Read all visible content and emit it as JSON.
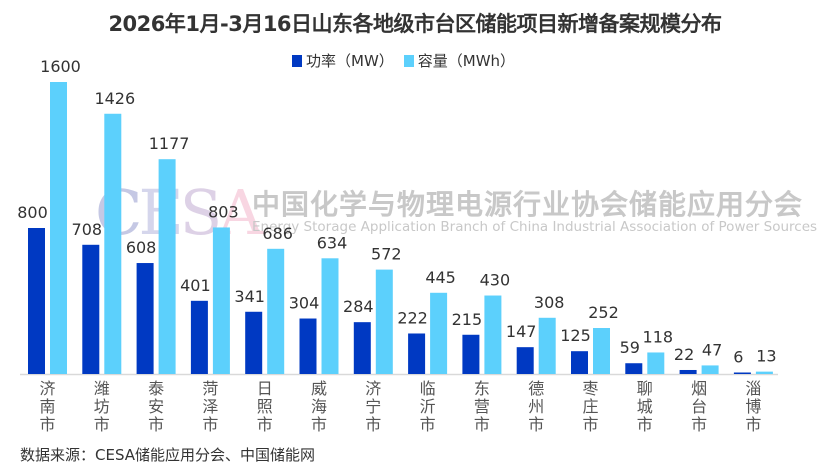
{
  "chart_data": {
    "type": "bar",
    "title": "2026年1月-3月16日山东各地级市台区储能项目新增备案规模分布",
    "categories": [
      "济南市",
      "潍坊市",
      "泰安市",
      "菏泽市",
      "日照市",
      "威海市",
      "济宁市",
      "临沂市",
      "东营市",
      "德州市",
      "枣庄市",
      "聊城市",
      "烟台市",
      "淄博市"
    ],
    "series": [
      {
        "name": "功率（MW）",
        "color": "#0039c2",
        "values": [
          800,
          708,
          608,
          401,
          341,
          304,
          284,
          222,
          215,
          147,
          125,
          59,
          22,
          6
        ]
      },
      {
        "name": "容量（MWh）",
        "color": "#5cd0fc",
        "values": [
          1600,
          1426,
          1177,
          803,
          686,
          634,
          572,
          445,
          430,
          308,
          252,
          118,
          47,
          13
        ]
      }
    ],
    "xlabel": "",
    "ylabel": "",
    "ylim": [
      0,
      1600
    ],
    "grid": false,
    "legend_position": "top-center",
    "data_labels": true
  },
  "watermark": {
    "logo": [
      "C",
      "E",
      "S",
      "A"
    ],
    "chinese": "中国化学与物理电源行业协会储能应用分会",
    "english": "Energy Storage Application Branch of China Industrial Association of Power Sources"
  },
  "source": "数据来源：CESA储能应用分会、中国储能网"
}
